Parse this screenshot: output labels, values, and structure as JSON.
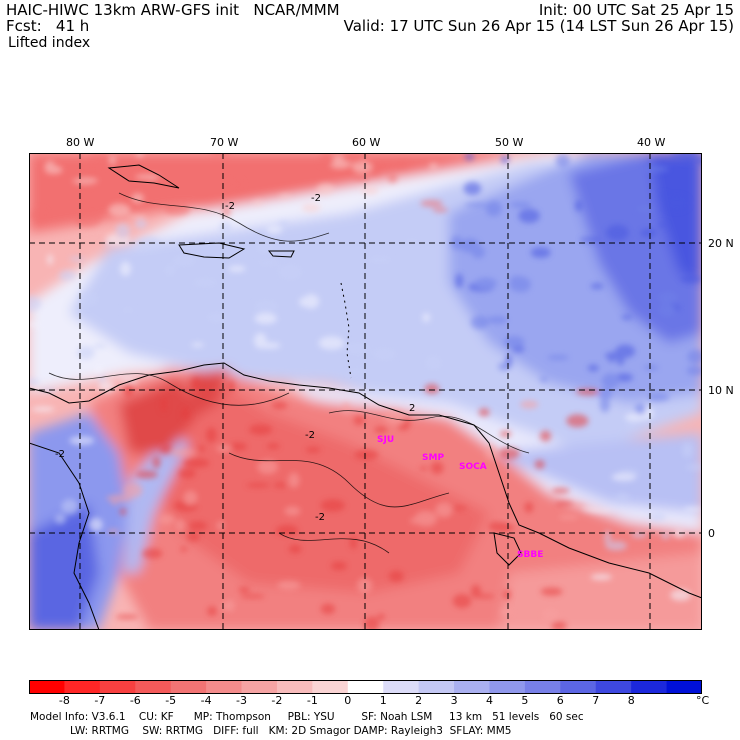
{
  "header": {
    "model_line": "HAIC-HIWC 13km ARW-GFS init   NCAR/MMM",
    "fcst_line": "Fcst:   41 h",
    "field": "Lifted index",
    "init_line": "Init: 00 UTC Sat 25 Apr 15",
    "valid_line": "Valid: 17 UTC Sun 26 Apr 15 (14 LST Sun 26 Apr 15)"
  },
  "map": {
    "lon_labels": [
      "80 W",
      "70 W",
      "60 W",
      "50 W",
      "40 W"
    ],
    "lat_labels": [
      "20 N",
      "10 N",
      "0"
    ],
    "contour_labels": [
      "-2",
      "-2",
      "-2",
      "2",
      "-2",
      "-2"
    ],
    "sites": [
      "SJU",
      "SMP",
      "SOCA",
      "SBBE"
    ],
    "colors": {
      "red_strong": "#e63c3c",
      "red": "#f27070",
      "red_light": "#f8a0a0",
      "pink": "#fbd0d0",
      "white": "#f4f4ff",
      "blue_light": "#c8d0f8",
      "blue": "#9aa8f0",
      "blue_mid": "#7080e8",
      "blue_strong": "#4858e0"
    }
  },
  "colorbar": {
    "ticks": [
      "-8",
      "-7",
      "-6",
      "-5",
      "-4",
      "-3",
      "-2",
      "-1",
      "0",
      "1",
      "2",
      "3",
      "4",
      "5",
      "6",
      "7",
      "8"
    ],
    "unit": "°C",
    "colors": [
      "#ff0000",
      "#ff2626",
      "#f84040",
      "#f45a5a",
      "#f27474",
      "#f48c8c",
      "#f6a4a4",
      "#f8bcbc",
      "#fad4d4",
      "#ffffff",
      "#dcdcf8",
      "#c4c8f4",
      "#aab0f0",
      "#9098ec",
      "#7880e8",
      "#5c66e4",
      "#3e48e0",
      "#1c28dc",
      "#0010d8"
    ]
  },
  "footer": {
    "line1": "Model Info: V3.6.1    CU: KF      MP: Thompson     PBL: YSU        SF: Noah LSM     13 km   51 levels   60 sec",
    "line2": "LW: RRTMG    SW: RRTMG   DIFF: full   KM: 2D Smagor DAMP: Rayleigh3  SFLAY: MM5"
  }
}
